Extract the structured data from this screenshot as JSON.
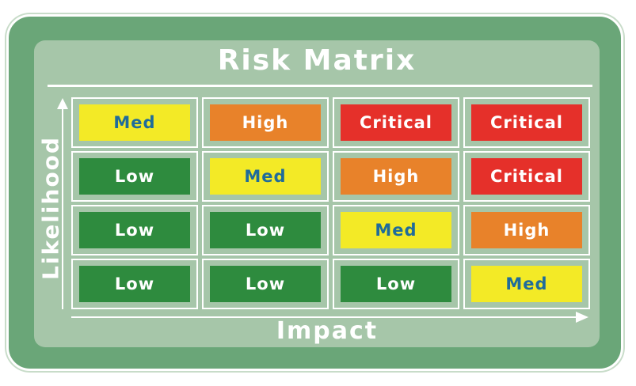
{
  "title": "Risk Matrix",
  "axes": {
    "y_label": "Likelihood",
    "x_label": "Impact"
  },
  "colors": {
    "Low": "#2e8b3e",
    "Med": "#f3ea26",
    "High": "#e8822a",
    "Critical": "#e5302a"
  },
  "matrix": {
    "rows": [
      [
        "Med",
        "High",
        "Critical",
        "Critical"
      ],
      [
        "Low",
        "Med",
        "High",
        "Critical"
      ],
      [
        "Low",
        "Low",
        "Med",
        "High"
      ],
      [
        "Low",
        "Low",
        "Low",
        "Med"
      ]
    ]
  }
}
